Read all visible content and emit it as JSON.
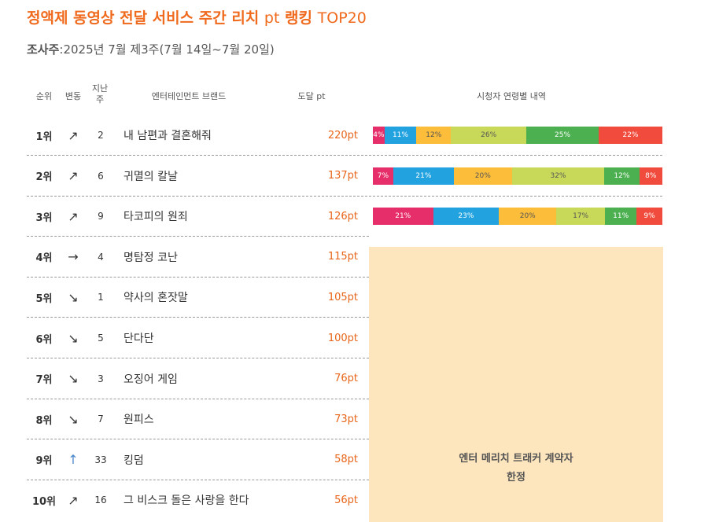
{
  "title": {
    "main": "정액제 동영상 전달 서비스 주간 리치",
    "unit": "pt",
    "ranking": "랭킹",
    "top": "TOP20"
  },
  "survey": {
    "label": "조사주",
    "value": ":2025년 7월 제3주(7월 14일~7월 20일)"
  },
  "headers": {
    "rank": "순위",
    "change": "변동",
    "previous": "지난주",
    "brand": "엔터테인먼트 브랜드",
    "reach": "도달 pt",
    "age": "시청자 연령별 내역"
  },
  "locked_message": {
    "line1": "엔터 메리치 트래커 계약자",
    "line2": "한정"
  },
  "colors": {
    "accent": "#f06a1d",
    "segments": [
      "#e62e6b",
      "#22a3e0",
      "#fbbd3a",
      "#c8d95a",
      "#4caf50",
      "#f04b3c"
    ],
    "locked_bg": "#fde5bd"
  },
  "chart_data": {
    "type": "table",
    "rows": [
      {
        "rank": "1위",
        "change": "↗",
        "previous": "2",
        "brand": "내 남편과 결혼해줘",
        "reach": "220pt",
        "ages": [
          4,
          11,
          12,
          26,
          25,
          22
        ],
        "age_labels": [
          "4%",
          "11%",
          "12%",
          "26%",
          "25%",
          "22%"
        ]
      },
      {
        "rank": "2위",
        "change": "↗",
        "previous": "6",
        "brand": "귀멸의 칼날",
        "reach": "137pt",
        "ages": [
          7,
          21,
          20,
          32,
          12,
          8
        ],
        "age_labels": [
          "7%",
          "21%",
          "20%",
          "32%",
          "12%",
          "8%"
        ]
      },
      {
        "rank": "3위",
        "change": "↗",
        "previous": "9",
        "brand": "타코피의 원죄",
        "reach": "126pt",
        "ages": [
          21,
          23,
          20,
          17,
          11,
          9
        ],
        "age_labels": [
          "21%",
          "23%",
          "20%",
          "17%",
          "11%",
          "9%"
        ]
      },
      {
        "rank": "4위",
        "change": "→",
        "previous": "4",
        "brand": "명탐정 코난",
        "reach": "115pt"
      },
      {
        "rank": "5위",
        "change": "↘",
        "previous": "1",
        "brand": "약사의 혼잣말",
        "reach": "105pt"
      },
      {
        "rank": "6위",
        "change": "↘",
        "previous": "5",
        "brand": "단다단",
        "reach": "100pt"
      },
      {
        "rank": "7위",
        "change": "↘",
        "previous": "3",
        "brand": "오징어 게임",
        "reach": "76pt"
      },
      {
        "rank": "8위",
        "change": "↘",
        "previous": "7",
        "brand": "원피스",
        "reach": "73pt"
      },
      {
        "rank": "9위",
        "change": "↑",
        "previous": "33",
        "brand": "킹덤",
        "reach": "58pt"
      },
      {
        "rank": "10위",
        "change": "↗",
        "previous": "16",
        "brand": "그 비스크 돌은 사랑을 한다",
        "reach": "56pt"
      }
    ]
  }
}
